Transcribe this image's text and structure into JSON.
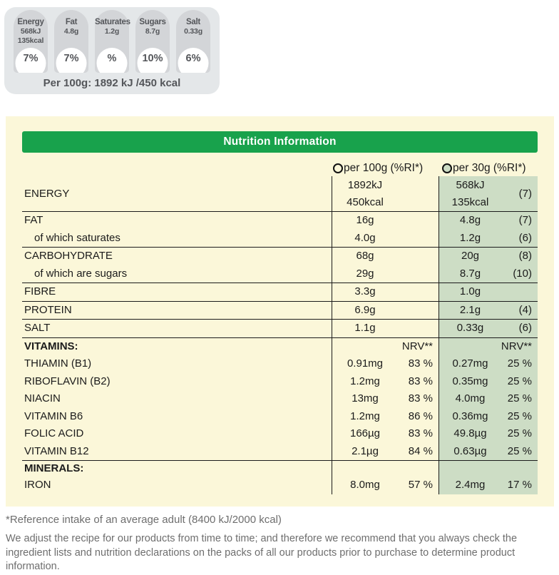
{
  "gda": {
    "per_100g_line": "Per 100g: 1892 kJ /450 kcal",
    "badges": [
      {
        "id": "energy",
        "label": "Energy",
        "value1": "568kJ",
        "value2": "135kcal",
        "percent": "7%"
      },
      {
        "id": "fat",
        "label": "Fat",
        "value1": "4.8g",
        "value2": "",
        "percent": "7%"
      },
      {
        "id": "saturates",
        "label": "Saturates",
        "value1": "1.2g",
        "value2": "",
        "percent": "%"
      },
      {
        "id": "sugars",
        "label": "Sugars",
        "value1": "8.7g",
        "value2": "",
        "percent": "10%"
      },
      {
        "id": "salt",
        "label": "Salt",
        "value1": "0.33g",
        "value2": "",
        "percent": "6%"
      }
    ]
  },
  "panel": {
    "title": "Nutrition Information",
    "columns": [
      {
        "label": "per 100g (%RI*)",
        "selected": false
      },
      {
        "label": "per 30g (%RI*)",
        "selected": true
      }
    ],
    "rows": [
      {
        "id": "energy",
        "label": "ENERGY",
        "tall": true,
        "per100g": "1892kJ",
        "per100g_b": "450kcal",
        "ri100": "",
        "per30g": "568kJ",
        "per30g_b": "135kcal",
        "ri30": "(7)"
      },
      {
        "id": "fat",
        "label": "FAT",
        "rule": true,
        "per100g": "16g",
        "ri100": "",
        "per30g": "4.8g",
        "ri30": "(7)"
      },
      {
        "id": "saturates",
        "label": "of which saturates",
        "indent": true,
        "per100g": "4.0g",
        "ri100": "",
        "per30g": "1.2g",
        "ri30": "(6)"
      },
      {
        "id": "carbohydrate",
        "label": "CARBOHYDRATE",
        "rule": true,
        "per100g": "68g",
        "ri100": "",
        "per30g": "20g",
        "ri30": "(8)"
      },
      {
        "id": "sugars",
        "label": "of which are sugars",
        "indent": true,
        "per100g": "29g",
        "ri100": "",
        "per30g": "8.7g",
        "ri30": "(10)"
      },
      {
        "id": "fibre",
        "label": "FIBRE",
        "rule": true,
        "per100g": "3.3g",
        "ri100": "",
        "per30g": "1.0g",
        "ri30": ""
      },
      {
        "id": "protein",
        "label": "PROTEIN",
        "rule": true,
        "per100g": "6.9g",
        "ri100": "",
        "per30g": "2.1g",
        "ri30": "(4)"
      },
      {
        "id": "salt",
        "label": "SALT",
        "rule": true,
        "per100g": "1.1g",
        "ri100": "",
        "per30g": "0.33g",
        "ri30": "(6)"
      },
      {
        "id": "vitamins",
        "label": "VITAMINS:",
        "rule": true,
        "section": true,
        "per100g": "",
        "ri100": "NRV**",
        "per30g": "",
        "ri30": "NRV**"
      },
      {
        "id": "thiamin-b1",
        "label": "THIAMIN (B1)",
        "per100g": "0.91mg",
        "ri100": "83 %",
        "per30g": "0.27mg",
        "ri30": "25 %"
      },
      {
        "id": "riboflavin-b2",
        "label": "RIBOFLAVIN (B2)",
        "per100g": "1.2mg",
        "ri100": "83 %",
        "per30g": "0.35mg",
        "ri30": "25 %"
      },
      {
        "id": "niacin",
        "label": "NIACIN",
        "per100g": "13mg",
        "ri100": "83 %",
        "per30g": "4.0mg",
        "ri30": "25 %"
      },
      {
        "id": "vitamin-b6",
        "label": "VITAMIN B6",
        "per100g": "1.2mg",
        "ri100": "86 %",
        "per30g": "0.36mg",
        "ri30": "25 %"
      },
      {
        "id": "folic-acid",
        "label": "FOLIC ACID",
        "per100g": "166µg",
        "ri100": "83 %",
        "per30g": "49.8µg",
        "ri30": "25 %"
      },
      {
        "id": "vitamin-b12",
        "label": "VITAMIN B12",
        "per100g": "2.1µg",
        "ri100": "84 %",
        "per30g": "0.63µg",
        "ri30": "25 %"
      },
      {
        "id": "minerals",
        "label": "MINERALS:",
        "rule": true,
        "section": true,
        "compact": true,
        "per100g": "",
        "ri100": "",
        "per30g": "",
        "ri30": ""
      },
      {
        "id": "iron",
        "label": "IRON",
        "per100g": "8.0mg",
        "ri100": "57 %",
        "per30g": "2.4mg",
        "ri30": "17 %"
      }
    ]
  },
  "footnotes": {
    "reference": "*Reference intake of an average adult (8400 kJ/2000 kcal)",
    "disclaimer": "We adjust the recipe for our products from time to time; and therefore we recommend that you always check the ingredient lists and nutrition declarations on the packs of all our products prior to purchase to determine product information."
  },
  "colors": {
    "header_green": "#18A24C",
    "highlight_green": "#CDDDC5",
    "panel_yellow": "#FBF7D9",
    "badge_background": "#D3D5D8",
    "badge_container": "#E4E7E9",
    "badge_text": "#54565A",
    "footnote_gray": "#6E6E6E"
  }
}
